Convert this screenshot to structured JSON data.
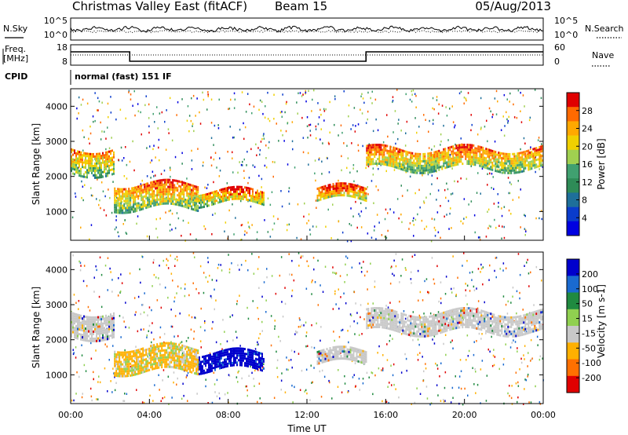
{
  "header": {
    "title": "Christmas Valley East (fitACF)",
    "beam": "Beam 15",
    "date": "05/Aug/2013"
  },
  "noise_panel": {
    "left_label": "N.Sky",
    "left_ticks": [
      "10^5",
      "10^0"
    ],
    "right_ticks": [
      "10^5",
      "10^0"
    ],
    "right_label": "N.Search"
  },
  "freq_panel": {
    "left_label_1": "Freq.",
    "left_label_2": "[MHz]",
    "left_ticks": [
      "18",
      "8"
    ],
    "right_ticks": [
      "60",
      "0"
    ],
    "right_label": "Nave"
  },
  "cpid": {
    "label": "CPID",
    "mode": "normal (fast) 151 IF"
  },
  "chart_data": [
    {
      "type": "heatmap",
      "panel": "power",
      "ylabel": "Slant Range [km]",
      "yticks": [
        "4000",
        "3000",
        "2000",
        "1000"
      ],
      "ylim": [
        180,
        4500
      ],
      "xlim": [
        "00:00",
        "24:00"
      ],
      "colorbar_label": "Power [dB]",
      "colorbar_ticks": [
        "28",
        "24",
        "20",
        "16",
        "12",
        "8",
        "4"
      ],
      "colorbar_colors": [
        "#e00000",
        "#ff6a00",
        "#ffa800",
        "#f0d000",
        "#a0d050",
        "#40a070",
        "#2e8b57",
        "#1e6f9a",
        "#0a3ccc",
        "#0000e0"
      ],
      "echo_bands": [
        {
          "t_start": 0.0,
          "t_end": 2.2,
          "range_km": [
            2100,
            2800
          ],
          "power_db": 26
        },
        {
          "t_start": 2.2,
          "t_end": 6.5,
          "range_km": [
            1100,
            1800
          ],
          "power_db": 24
        },
        {
          "t_start": 6.5,
          "t_end": 9.8,
          "range_km": [
            1200,
            1600
          ],
          "power_db": 22
        },
        {
          "t_start": 12.5,
          "t_end": 15.0,
          "range_km": [
            1300,
            1700
          ],
          "power_db": 22
        },
        {
          "t_start": 15.0,
          "t_end": 24.0,
          "range_km": [
            2200,
            2800
          ],
          "power_db": 24
        }
      ]
    },
    {
      "type": "heatmap",
      "panel": "velocity",
      "ylabel": "Slant Range [km]",
      "yticks": [
        "4000",
        "3000",
        "2000",
        "1000"
      ],
      "ylim": [
        180,
        4500
      ],
      "xlim": [
        "00:00",
        "24:00"
      ],
      "xticks": [
        "00:00",
        "04:00",
        "08:00",
        "12:00",
        "16:00",
        "20:00",
        "00:00"
      ],
      "xlabel": "Time UT",
      "colorbar_label": "Velocity [m s-1]",
      "colorbar_ticks": [
        "200",
        "100",
        "50",
        "15",
        "-15",
        "-50",
        "-100",
        "-200"
      ],
      "colorbar_colors": [
        "#0000cc",
        "#1a6ad0",
        "#208a40",
        "#90d050",
        "#c8c8c8",
        "#ffb000",
        "#ff7000",
        "#e00000"
      ],
      "echo_bands": [
        {
          "t_start": 0.0,
          "t_end": 2.2,
          "range_km": [
            2100,
            2800
          ],
          "velocity": 0
        },
        {
          "t_start": 2.2,
          "t_end": 6.5,
          "range_km": [
            1100,
            1800
          ],
          "velocity": -40
        },
        {
          "t_start": 6.5,
          "t_end": 9.8,
          "range_km": [
            1150,
            1650
          ],
          "velocity": 250
        },
        {
          "t_start": 12.5,
          "t_end": 15.0,
          "range_km": [
            1300,
            1700
          ],
          "velocity": 0
        },
        {
          "t_start": 15.0,
          "t_end": 24.0,
          "range_km": [
            2200,
            2800
          ],
          "velocity": 0
        }
      ]
    }
  ]
}
